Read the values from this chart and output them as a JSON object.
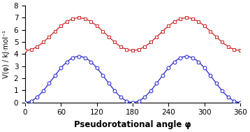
{
  "title": "",
  "xlabel": "Pseudorotational angle φ",
  "ylabel": "V(φ) / kJ·mol⁻¹",
  "xlim": [
    0,
    360
  ],
  "ylim": [
    0,
    8
  ],
  "xticks": [
    0,
    60,
    120,
    180,
    240,
    300,
    360
  ],
  "yticks": [
    0,
    1,
    2,
    3,
    4,
    5,
    6,
    7,
    8
  ],
  "red_color": "#cc2222",
  "blue_color": "#2222cc",
  "marker_size": 3.5,
  "marker_interval": 10,
  "red_a0": 5.65,
  "red_a1": -1.35,
  "red_a2": -1.35,
  "blue_A": 1.9,
  "figsize": [
    3.58,
    1.89
  ],
  "dpi": 100
}
